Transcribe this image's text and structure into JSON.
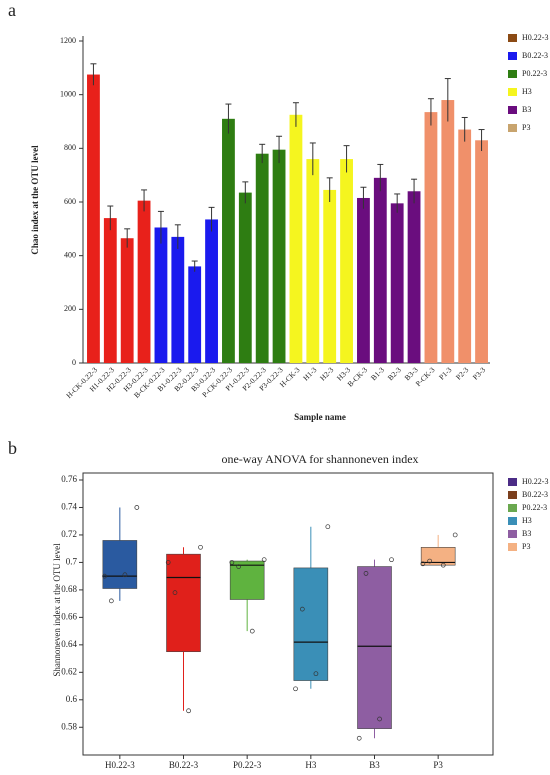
{
  "chart_data": [
    {
      "type": "bar",
      "panel": "a",
      "ylabel": "Chao index at the OTU level",
      "xlabel": "Sample name",
      "categories": [
        "H-CK-0.22-3",
        "H1-0.22-3",
        "H2-0.22-3",
        "H3-0.22-3",
        "B-CK-0.22-3",
        "B1-0.22-3",
        "B2-0.22-3",
        "B3-0.22-3",
        "P-CK-0.22-3",
        "P1-0.22-3",
        "P2-0.22-3",
        "P3-0.22-3",
        "H-CK-3",
        "H1-3",
        "H2-3",
        "H3-3",
        "B-CK-3",
        "B1-3",
        "B2-3",
        "B3-3",
        "P-CK-3",
        "P1-3",
        "P2-3",
        "P3-3"
      ],
      "values": [
        1075,
        540,
        465,
        605,
        505,
        470,
        360,
        535,
        910,
        635,
        780,
        795,
        925,
        760,
        645,
        760,
        615,
        690,
        595,
        640,
        935,
        980,
        870,
        830
      ],
      "errors": [
        40,
        45,
        35,
        40,
        60,
        45,
        20,
        45,
        55,
        40,
        35,
        50,
        45,
        60,
        45,
        50,
        40,
        50,
        35,
        45,
        50,
        80,
        45,
        40
      ],
      "bar_colors": [
        "#e8211b",
        "#e8211b",
        "#e8211b",
        "#e8211b",
        "#1a1aee",
        "#1a1aee",
        "#1a1aee",
        "#1a1aee",
        "#2e7d12",
        "#2e7d12",
        "#2e7d12",
        "#2e7d12",
        "#f5f51f",
        "#f5f51f",
        "#f5f51f",
        "#f5f51f",
        "#6a0d7e",
        "#6a0d7e",
        "#6a0d7e",
        "#6a0d7e",
        "#f0906a",
        "#f0906a",
        "#f0906a",
        "#f0906a"
      ],
      "legend": [
        {
          "name": "H0.22-3",
          "color": "#8b4a14"
        },
        {
          "name": "B0.22-3",
          "color": "#1a1aee"
        },
        {
          "name": "P0.22-3",
          "color": "#2e7d12"
        },
        {
          "name": "H3",
          "color": "#f5f51f"
        },
        {
          "name": "B3",
          "color": "#6a0d7e"
        },
        {
          "name": "P3",
          "color": "#c8a46e"
        }
      ],
      "ylim": [
        0,
        1200
      ],
      "yticks": [
        0,
        200,
        400,
        600,
        800,
        1000,
        1200
      ]
    },
    {
      "type": "box",
      "panel": "b",
      "title": "one-way ANOVA for shannoneven index",
      "ylabel": "Shannoneven index at the OTU level",
      "categories": [
        "H0.22-3",
        "B0.22-3",
        "P0.22-3",
        "H3",
        "B3",
        "P3"
      ],
      "low": [
        0.672,
        0.592,
        0.65,
        0.608,
        0.572,
        0.698
      ],
      "q1": [
        0.681,
        0.635,
        0.673,
        0.614,
        0.579,
        0.698
      ],
      "median": [
        0.69,
        0.689,
        0.698,
        0.642,
        0.639,
        0.7
      ],
      "q3": [
        0.716,
        0.706,
        0.701,
        0.696,
        0.697,
        0.711
      ],
      "high": [
        0.74,
        0.711,
        0.702,
        0.726,
        0.702,
        0.72
      ],
      "points": [
        [
          0.74,
          0.672,
          0.691,
          0.69
        ],
        [
          0.711,
          0.678,
          0.592,
          0.7
        ],
        [
          0.702,
          0.697,
          0.65,
          0.7
        ],
        [
          0.726,
          0.666,
          0.619,
          0.608
        ],
        [
          0.702,
          0.692,
          0.586,
          0.572
        ],
        [
          0.72,
          0.701,
          0.698,
          0.699
        ]
      ],
      "box_colors": [
        "#2a5aa0",
        "#e0201b",
        "#5fb33f",
        "#3a8fb7",
        "#8e5ea2",
        "#f4b183"
      ],
      "legend": [
        {
          "name": "H0.22-3",
          "color": "#4b2c86"
        },
        {
          "name": "B0.22-3",
          "color": "#7b3f1d"
        },
        {
          "name": "P0.22-3",
          "color": "#6aa84f"
        },
        {
          "name": "H3",
          "color": "#3a8fb7"
        },
        {
          "name": "B3",
          "color": "#8e5ea2"
        },
        {
          "name": "P3",
          "color": "#f4b183"
        }
      ],
      "ylim": [
        0.57,
        0.76
      ],
      "yticks": [
        0.58,
        0.6,
        0.62,
        0.64,
        0.66,
        0.68,
        0.7,
        0.72,
        0.74,
        0.76
      ]
    }
  ]
}
